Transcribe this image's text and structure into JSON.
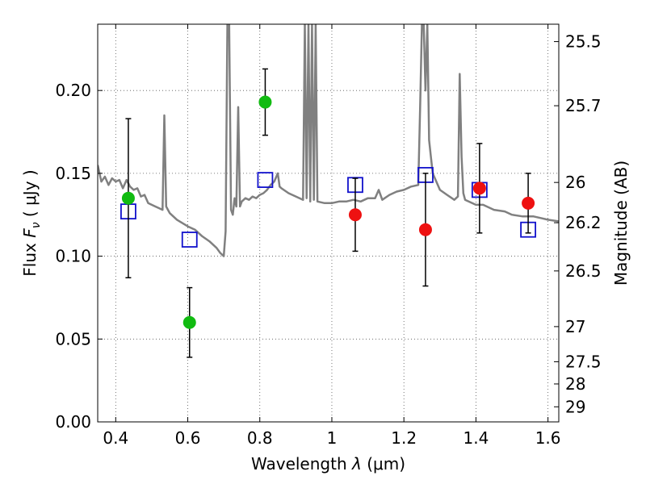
{
  "chart_data": {
    "type": "scatter",
    "xlabel": "Wavelength",
    "xlabel_symbol": "λ",
    "xlabel_unit": "(μm)",
    "ylabel": "Flux",
    "ylabel_symbol": "F",
    "ylabel_subscript": "ν",
    "ylabel_unit": "( μJy )",
    "y2label": "Magnitude (AB)",
    "xlim": [
      0.35,
      1.63
    ],
    "ylim": [
      0.0,
      0.24
    ],
    "grid": true,
    "x_ticks": [
      {
        "value": 0.4,
        "label": "0.4"
      },
      {
        "value": 0.6,
        "label": "0.6"
      },
      {
        "value": 0.8,
        "label": "0.8"
      },
      {
        "value": 1.0,
        "label": "1"
      },
      {
        "value": 1.2,
        "label": "1.2"
      },
      {
        "value": 1.4,
        "label": "1.4"
      },
      {
        "value": 1.6,
        "label": "1.6"
      }
    ],
    "y_ticks": [
      {
        "value": 0.0,
        "label": "0.00"
      },
      {
        "value": 0.05,
        "label": "0.05"
      },
      {
        "value": 0.1,
        "label": "0.10"
      },
      {
        "value": 0.15,
        "label": "0.15"
      },
      {
        "value": 0.2,
        "label": "0.20"
      }
    ],
    "y2_ticks": [
      {
        "flux": 0.2295,
        "label": "25.5"
      },
      {
        "flux": 0.1908,
        "label": "25.7"
      },
      {
        "flux": 0.1445,
        "label": "26"
      },
      {
        "flux": 0.1202,
        "label": "26.2"
      },
      {
        "flux": 0.0911,
        "label": "26.5"
      },
      {
        "flux": 0.0575,
        "label": "27"
      },
      {
        "flux": 0.0363,
        "label": "27.5"
      },
      {
        "flux": 0.0229,
        "label": "28"
      },
      {
        "flux": 0.0091,
        "label": "29"
      }
    ],
    "colors": {
      "green": "#11bb11",
      "red": "#ee1111",
      "blue": "#1111cc",
      "model": "#808080",
      "grid": "#555555",
      "errorbar": "#000000"
    },
    "series": [
      {
        "style": "green-circle",
        "points": [
          {
            "x": 0.435,
            "y": 0.135,
            "err": 0.048
          },
          {
            "x": 0.605,
            "y": 0.06,
            "err": 0.021
          },
          {
            "x": 0.815,
            "y": 0.193,
            "err": 0.02
          }
        ]
      },
      {
        "style": "red-circle",
        "points": [
          {
            "x": 1.065,
            "y": 0.125,
            "err": 0.022
          },
          {
            "x": 1.26,
            "y": 0.116,
            "err": 0.034
          },
          {
            "x": 1.41,
            "y": 0.141,
            "err": 0.027
          },
          {
            "x": 1.545,
            "y": 0.132,
            "err": 0.018
          }
        ]
      },
      {
        "style": "blue-square",
        "points": [
          {
            "x": 0.435,
            "y": 0.127
          },
          {
            "x": 0.605,
            "y": 0.11
          },
          {
            "x": 0.815,
            "y": 0.146
          },
          {
            "x": 1.065,
            "y": 0.143
          },
          {
            "x": 1.26,
            "y": 0.149
          },
          {
            "x": 1.41,
            "y": 0.14
          },
          {
            "x": 1.545,
            "y": 0.116
          }
        ]
      },
      {
        "style": "model-line",
        "x": [
          0.35,
          0.36,
          0.37,
          0.38,
          0.39,
          0.4,
          0.41,
          0.42,
          0.43,
          0.44,
          0.45,
          0.46,
          0.47,
          0.48,
          0.49,
          0.5,
          0.51,
          0.52,
          0.53,
          0.535,
          0.54,
          0.545,
          0.55,
          0.57,
          0.6,
          0.62,
          0.64,
          0.66,
          0.68,
          0.69,
          0.7,
          0.705,
          0.71,
          0.715,
          0.72,
          0.725,
          0.73,
          0.735,
          0.74,
          0.745,
          0.75,
          0.76,
          0.77,
          0.78,
          0.79,
          0.8,
          0.81,
          0.82,
          0.83,
          0.84,
          0.85,
          0.855,
          0.86,
          0.88,
          0.9,
          0.92,
          0.925,
          0.93,
          0.935,
          0.94,
          0.945,
          0.95,
          0.955,
          0.96,
          0.98,
          1.0,
          1.02,
          1.04,
          1.06,
          1.08,
          1.1,
          1.12,
          1.13,
          1.14,
          1.16,
          1.18,
          1.2,
          1.22,
          1.24,
          1.245,
          1.25,
          1.255,
          1.26,
          1.265,
          1.27,
          1.275,
          1.28,
          1.3,
          1.32,
          1.34,
          1.35,
          1.355,
          1.36,
          1.365,
          1.37,
          1.4,
          1.42,
          1.45,
          1.48,
          1.5,
          1.53,
          1.56,
          1.58,
          1.6,
          1.63
        ],
        "y": [
          0.155,
          0.145,
          0.148,
          0.143,
          0.147,
          0.145,
          0.146,
          0.141,
          0.146,
          0.142,
          0.14,
          0.141,
          0.136,
          0.137,
          0.132,
          0.131,
          0.13,
          0.129,
          0.128,
          0.185,
          0.13,
          0.128,
          0.126,
          0.122,
          0.118,
          0.116,
          0.112,
          0.109,
          0.105,
          0.102,
          0.1,
          0.115,
          0.24,
          0.24,
          0.128,
          0.125,
          0.135,
          0.13,
          0.19,
          0.13,
          0.133,
          0.135,
          0.134,
          0.136,
          0.135,
          0.137,
          0.138,
          0.14,
          0.143,
          0.145,
          0.15,
          0.142,
          0.141,
          0.138,
          0.136,
          0.134,
          0.24,
          0.135,
          0.24,
          0.133,
          0.24,
          0.134,
          0.24,
          0.133,
          0.132,
          0.132,
          0.133,
          0.133,
          0.134,
          0.133,
          0.135,
          0.135,
          0.14,
          0.134,
          0.137,
          0.139,
          0.14,
          0.142,
          0.143,
          0.19,
          0.24,
          0.24,
          0.2,
          0.24,
          0.17,
          0.16,
          0.15,
          0.14,
          0.137,
          0.134,
          0.136,
          0.21,
          0.16,
          0.138,
          0.134,
          0.131,
          0.131,
          0.128,
          0.127,
          0.125,
          0.124,
          0.124,
          0.123,
          0.122,
          0.121
        ]
      }
    ]
  }
}
